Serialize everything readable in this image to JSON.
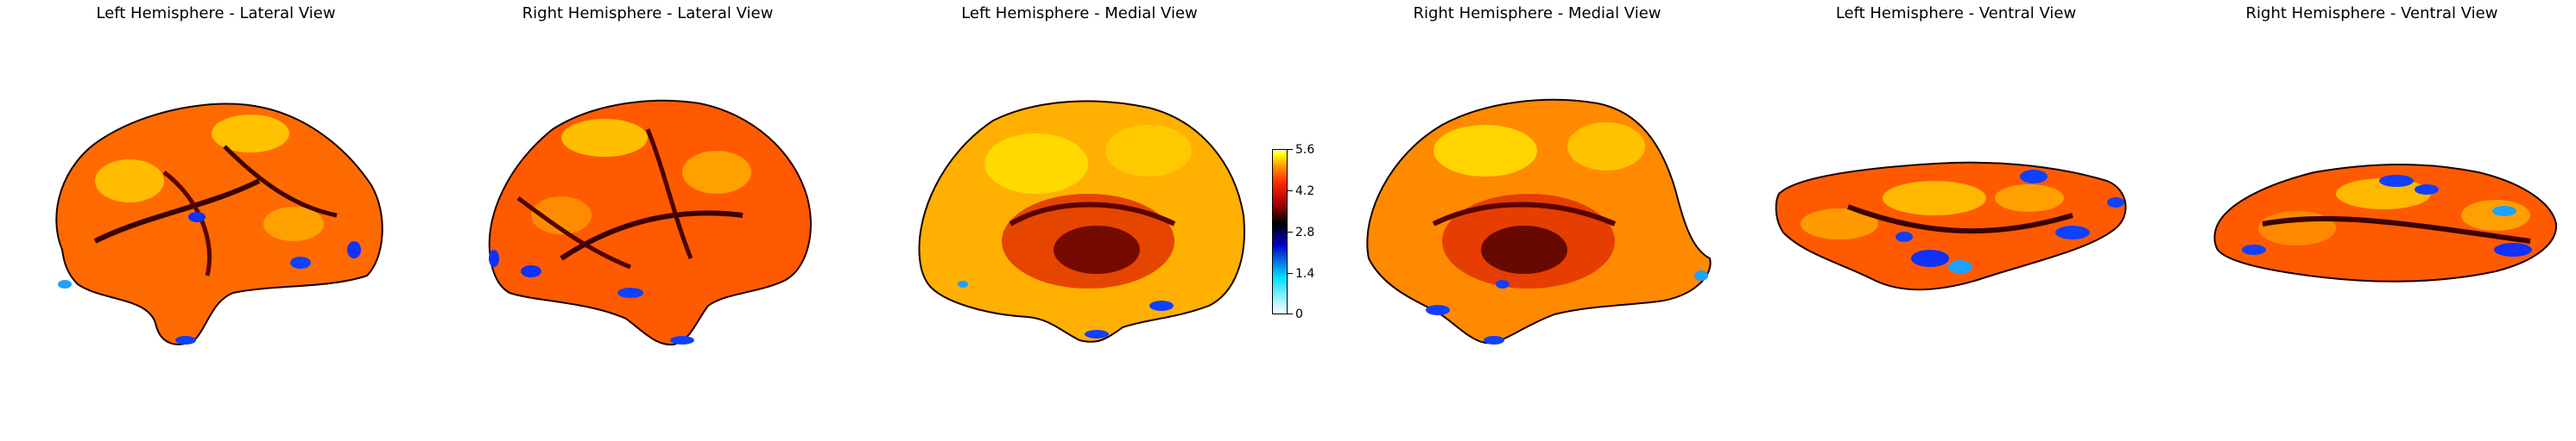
{
  "panels": [
    {
      "title": "Left Hemisphere - Lateral View",
      "view": "lateral",
      "hemisphere": "left"
    },
    {
      "title": "Right Hemisphere - Lateral View",
      "view": "lateral",
      "hemisphere": "right"
    },
    {
      "title": "Left Hemisphere - Medial View",
      "view": "medial",
      "hemisphere": "left"
    },
    {
      "title": "Right Hemisphere - Medial View",
      "view": "medial",
      "hemisphere": "right"
    },
    {
      "title": "Left Hemisphere - Ventral View",
      "view": "ventral",
      "hemisphere": "left"
    },
    {
      "title": "Right Hemisphere - Ventral View",
      "view": "ventral",
      "hemisphere": "right"
    }
  ],
  "colorbar": {
    "min": 0,
    "max": 5.6,
    "ticks": [
      "5.6",
      "4.2",
      "2.8",
      "1.4",
      "0"
    ],
    "colormap": [
      "#ffffff",
      "#00e0ff",
      "#0000c8",
      "#000000",
      "#b00000",
      "#ff2a00",
      "#ff9900",
      "#ffff00"
    ]
  },
  "colors": {
    "hot": "#ff9900",
    "hotter": "#ffe000",
    "warm": "#e02a00",
    "dark": "#2a0000",
    "cold": "#1040ff",
    "ice": "#20c0ff"
  }
}
